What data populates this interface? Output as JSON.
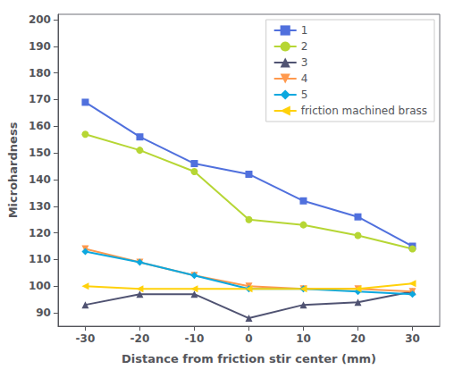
{
  "chart_data": {
    "type": "line",
    "xlabel": "Distance from friction stir center (mm)",
    "ylabel": "Microhardness",
    "x": [
      -30,
      -20,
      -10,
      0,
      10,
      20,
      30
    ],
    "series": [
      {
        "name": "1",
        "marker": "square",
        "values": [
          169,
          156,
          146,
          142,
          132,
          126,
          115
        ]
      },
      {
        "name": "2",
        "marker": "circle",
        "values": [
          157,
          151,
          143,
          125,
          123,
          119,
          114
        ]
      },
      {
        "name": "3",
        "marker": "triangle-up",
        "values": [
          93,
          97,
          97,
          88,
          93,
          94,
          98
        ]
      },
      {
        "name": "4",
        "marker": "triangle-down",
        "values": [
          114,
          109,
          104,
          100,
          99,
          99,
          98
        ]
      },
      {
        "name": "5",
        "marker": "diamond",
        "values": [
          113,
          109,
          104,
          99,
          99,
          98,
          97
        ]
      },
      {
        "name": "friction machined brass",
        "marker": "triangle-left",
        "values": [
          100,
          99,
          99,
          99,
          99,
          99,
          101
        ]
      }
    ],
    "xlim": [
      -35,
      35
    ],
    "xticks": [
      -30,
      -20,
      -10,
      0,
      10,
      20,
      30
    ],
    "ylim": [
      85,
      202
    ],
    "yticks": [
      90,
      100,
      110,
      120,
      130,
      140,
      150,
      160,
      170,
      180,
      190,
      200
    ],
    "grid": false,
    "legend": "upper right"
  }
}
